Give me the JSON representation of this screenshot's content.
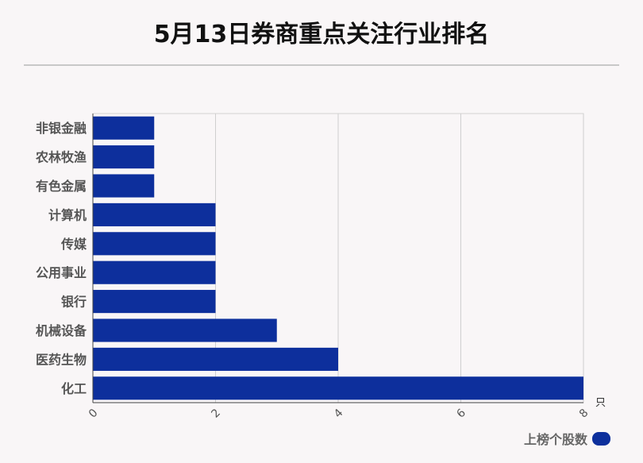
{
  "title": "5月13日券商重点关注行业排名",
  "chart_data": {
    "type": "bar",
    "orientation": "horizontal",
    "categories": [
      "非银金融",
      "农林牧渔",
      "有色金属",
      "计算机",
      "传媒",
      "公用事业",
      "银行",
      "机械设备",
      "医药生物",
      "化工"
    ],
    "series": [
      {
        "name": "上榜个股数",
        "values": [
          1,
          1,
          1,
          2,
          2,
          2,
          2,
          3,
          4,
          8
        ]
      }
    ],
    "xticks": [
      "0",
      "2",
      "4",
      "6",
      "8"
    ],
    "xlim": [
      0,
      8
    ],
    "unit": "只",
    "bar_color": "#0d2f9c",
    "grid": true,
    "legend_position": "bottom-right"
  }
}
